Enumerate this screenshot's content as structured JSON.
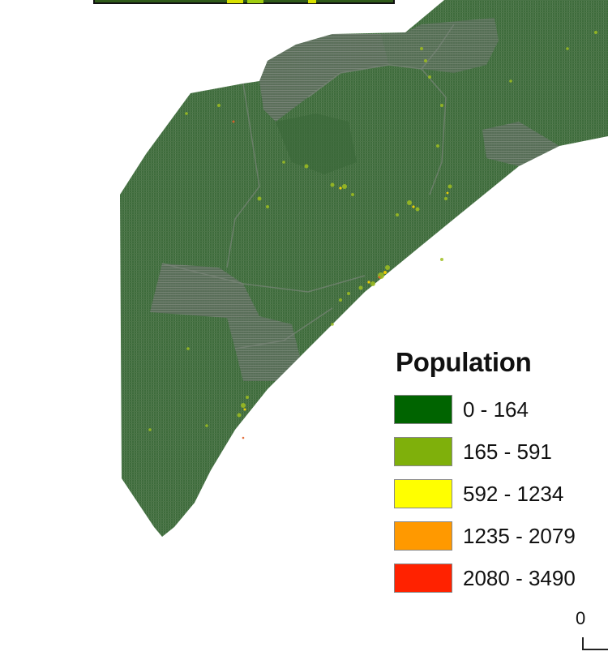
{
  "legend": {
    "title": "Population",
    "classes": [
      {
        "label": "0 - 164",
        "color": "#006400"
      },
      {
        "label": "165 - 591",
        "color": "#7fb00b"
      },
      {
        "label": "592 - 1234",
        "color": "#ffff00"
      },
      {
        "label": "1235 - 2079",
        "color": "#ff9900"
      },
      {
        "label": "2080 - 3490",
        "color": "#ff2200"
      }
    ]
  },
  "scale_bar": {
    "start_label": "0"
  },
  "map_colors": {
    "land": "#3f6e3d",
    "land_light": "#5c745a",
    "district": "#6c7a6b"
  }
}
